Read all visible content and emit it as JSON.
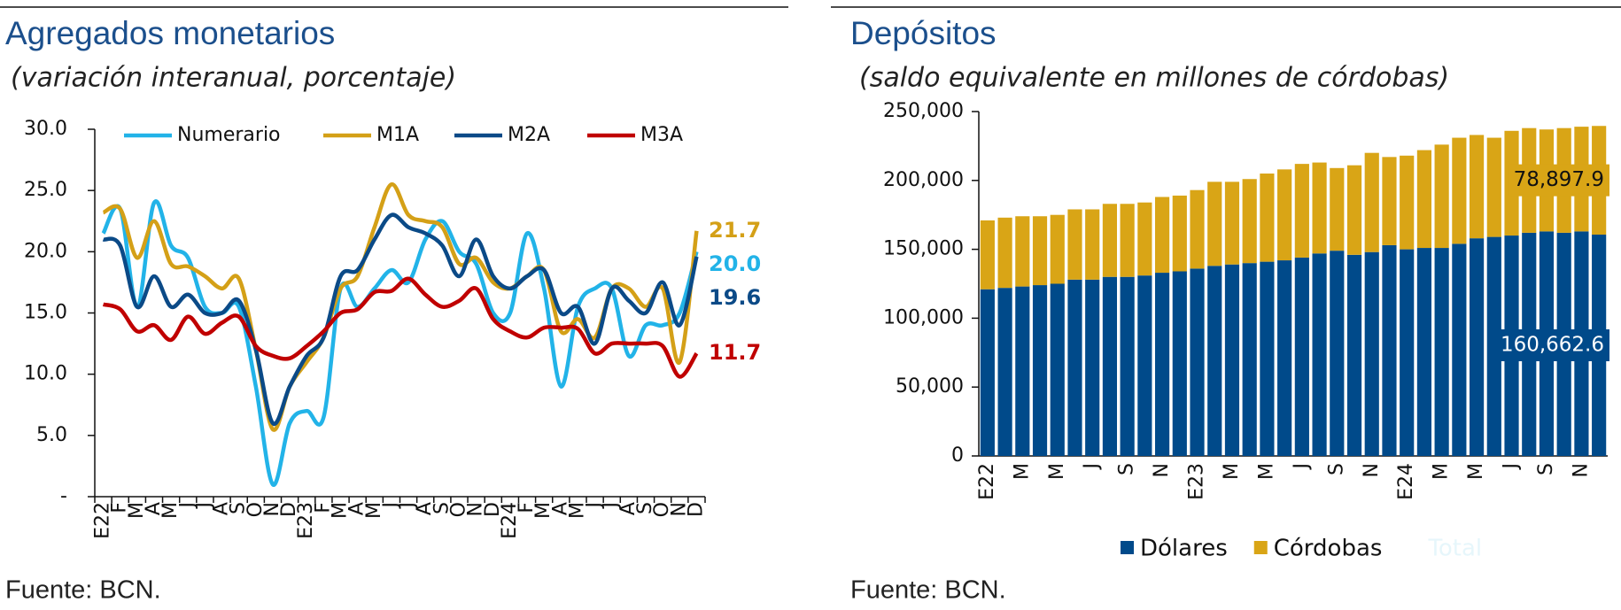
{
  "chart_data": [
    {
      "type": "line",
      "title": "Agregados monetarios",
      "subtitle": "(variación interanual, porcentaje)",
      "source": "Fuente: BCN.",
      "categories": [
        "E22",
        "F",
        "M",
        "A",
        "M",
        "J",
        "J",
        "A",
        "S",
        "O",
        "N",
        "D",
        "E23",
        "F",
        "M",
        "A",
        "M",
        "J",
        "J",
        "A",
        "S",
        "O",
        "N",
        "D",
        "E24",
        "F",
        "M",
        "A",
        "M",
        "J",
        "J",
        "A",
        "S",
        "O",
        "N",
        "D"
      ],
      "ylim": [
        0,
        30
      ],
      "yticks": [
        {
          "value": 0,
          "label": "-"
        },
        {
          "value": 5,
          "label": "5.0"
        },
        {
          "value": 10,
          "label": "10.0"
        },
        {
          "value": 15,
          "label": "15.0"
        },
        {
          "value": 20,
          "label": "20.0"
        },
        {
          "value": 25,
          "label": "25.0"
        },
        {
          "value": 30,
          "label": "30.0"
        }
      ],
      "legend": "top",
      "series": [
        {
          "name": "Numerario",
          "color": "#22b3e8",
          "values": [
            21.5,
            23.5,
            15.5,
            24,
            20.5,
            19.5,
            15.5,
            15,
            15.5,
            9,
            1,
            6,
            7,
            6.5,
            17,
            15.5,
            17,
            18.5,
            17.5,
            21,
            22.5,
            20,
            19,
            15,
            15,
            21.5,
            17,
            9,
            15.5,
            17,
            17,
            11.5,
            14,
            14,
            15,
            20
          ],
          "value_labels": [
            null,
            null,
            null,
            null,
            null,
            null,
            null,
            null,
            null,
            null,
            null,
            null,
            null,
            null,
            null,
            null,
            null,
            null,
            null,
            null,
            null,
            null,
            null,
            null,
            null,
            null,
            null,
            null,
            null,
            null,
            null,
            null,
            null,
            null,
            null,
            "20.0"
          ]
        },
        {
          "name": "M1A",
          "color": "#d4a017",
          "values": [
            23.2,
            23.5,
            19.5,
            22.5,
            19,
            18.8,
            18,
            17,
            17.8,
            12,
            5.5,
            9,
            11,
            13,
            17,
            18,
            22,
            25.5,
            23,
            22.5,
            22,
            19,
            19.5,
            17.5,
            17,
            18,
            18.5,
            13.5,
            14.5,
            13,
            17,
            17,
            15.5,
            17,
            11,
            21.7
          ]
        },
        {
          "name": "M2A",
          "color": "#0b4a87",
          "values": [
            21,
            20.5,
            15.5,
            18,
            15.5,
            16.5,
            15,
            15,
            16,
            12,
            6,
            9,
            11.5,
            13,
            18,
            18.5,
            21,
            23,
            22,
            21.5,
            20.5,
            18,
            21,
            18,
            17,
            18,
            18.5,
            15,
            15.5,
            12.5,
            17,
            16,
            15,
            17.5,
            14,
            19.6
          ]
        },
        {
          "name": "M3A",
          "color": "#c00000",
          "values": [
            15.7,
            15.3,
            13.5,
            14,
            12.8,
            14.7,
            13.3,
            14.2,
            14.7,
            12.3,
            11.5,
            11.3,
            12.3,
            13.5,
            15,
            15.3,
            16.7,
            16.8,
            17.8,
            16.5,
            15.5,
            16,
            17,
            14.5,
            13.5,
            13,
            13.8,
            13.8,
            13.7,
            11.7,
            12.5,
            12.5,
            12.5,
            12.3,
            9.8,
            11.7
          ]
        }
      ]
    },
    {
      "type": "stacked_bar",
      "title": "Depósitos",
      "subtitle": "(saldo equivalente en millones de córdobas)",
      "source": "Fuente: BCN.",
      "categories": [
        "E22",
        null,
        "M",
        null,
        "M",
        null,
        "J",
        null,
        "S",
        null,
        "N",
        null,
        "E23",
        null,
        "M",
        null,
        "M",
        null,
        "J",
        null,
        "S",
        null,
        "N",
        null,
        "E24",
        null,
        "M",
        null,
        "M",
        null,
        "J",
        null,
        "S",
        null,
        "N",
        null
      ],
      "ylim": [
        0,
        250000
      ],
      "yticks": [
        0,
        {
          "value": 50000,
          "label": "50,000"
        },
        {
          "value": 100000,
          "label": "100,000"
        },
        {
          "value": 150000,
          "label": "150,000"
        },
        {
          "value": 200000,
          "label": "200,000"
        },
        {
          "value": 250000,
          "label": "250,000"
        }
      ],
      "legend": "bottom",
      "total_label": "Total",
      "series": [
        {
          "name": "Dólares",
          "color": "#004a8a",
          "values": [
            121000,
            122000,
            123000,
            124000,
            125000,
            128000,
            128000,
            130000,
            130000,
            131000,
            133000,
            134000,
            136000,
            138000,
            139000,
            140000,
            141000,
            142000,
            144000,
            147000,
            149000,
            146000,
            148000,
            153000,
            150000,
            151000,
            151000,
            154000,
            158000,
            159000,
            160000,
            162000,
            163000,
            162000,
            163000,
            160662.6
          ],
          "value_labels": [
            null,
            null,
            null,
            null,
            null,
            null,
            null,
            null,
            null,
            null,
            null,
            null,
            null,
            null,
            null,
            null,
            null,
            null,
            null,
            null,
            null,
            null,
            null,
            null,
            null,
            null,
            null,
            null,
            null,
            null,
            null,
            null,
            null,
            null,
            null,
            "160,662.6"
          ]
        },
        {
          "name": "Córdobas",
          "color": "#d9a516",
          "values": [
            50000,
            51000,
            51000,
            50000,
            50000,
            51000,
            51000,
            53000,
            53000,
            53000,
            55000,
            55000,
            57000,
            61000,
            60000,
            61000,
            64000,
            66000,
            68000,
            66000,
            60000,
            65000,
            72000,
            64000,
            68000,
            71000,
            75000,
            77000,
            75000,
            72000,
            76000,
            76000,
            74000,
            76000,
            76000,
            78897.9
          ],
          "value_labels": [
            null,
            null,
            null,
            null,
            null,
            null,
            null,
            null,
            null,
            null,
            null,
            null,
            null,
            null,
            null,
            null,
            null,
            null,
            null,
            null,
            null,
            null,
            null,
            null,
            null,
            null,
            null,
            null,
            null,
            null,
            null,
            null,
            null,
            null,
            null,
            "78,897.9"
          ]
        }
      ]
    }
  ]
}
